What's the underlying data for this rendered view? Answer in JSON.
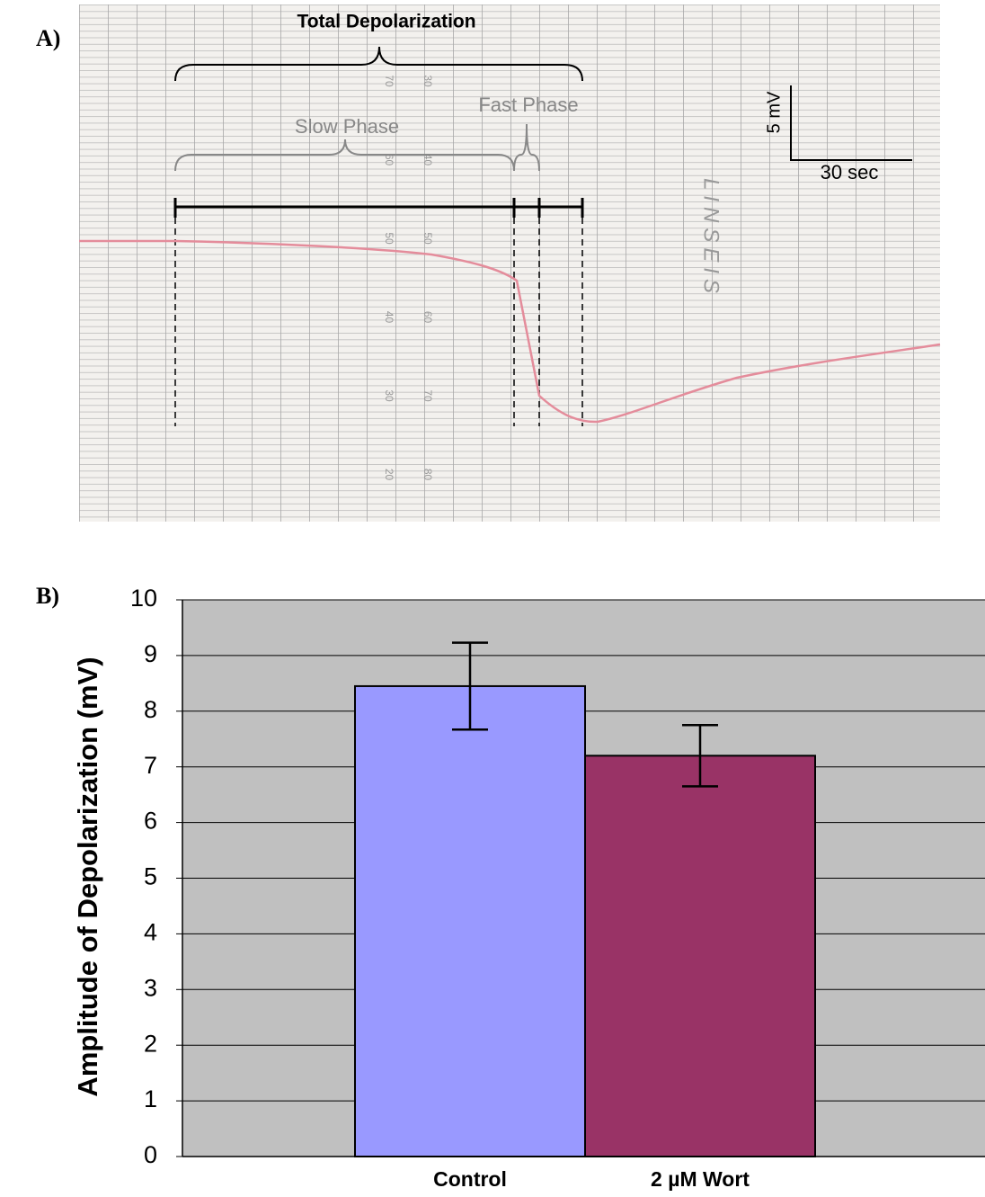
{
  "panel_a": {
    "label": "A)",
    "title": "Total Depolarization",
    "slow_phase": "Slow Phase",
    "fast_phase": "Fast Phase",
    "scale_y": "5 mV",
    "scale_x": "30 sec",
    "paper_numbers": [
      [
        "70",
        "30"
      ],
      [
        "60",
        "40"
      ],
      [
        "50",
        "50"
      ],
      [
        "40",
        "60"
      ],
      [
        "30",
        "70"
      ],
      [
        "20",
        "80"
      ]
    ],
    "brand": "LINSEIS"
  },
  "chart_data": {
    "type": "bar",
    "panel_label": "B)",
    "y_label": "Amplitude of Depolarization (mV)",
    "categories": [
      "Control",
      "2 µM Wort"
    ],
    "values": [
      8.45,
      7.2
    ],
    "errors": [
      0.78,
      0.55
    ],
    "colors": [
      "#9999ff",
      "#993366"
    ],
    "background": "#c0c0c0",
    "ylim": [
      0,
      10
    ],
    "yticks": [
      0,
      1,
      2,
      3,
      4,
      5,
      6,
      7,
      8,
      9,
      10
    ],
    "grid": true
  }
}
